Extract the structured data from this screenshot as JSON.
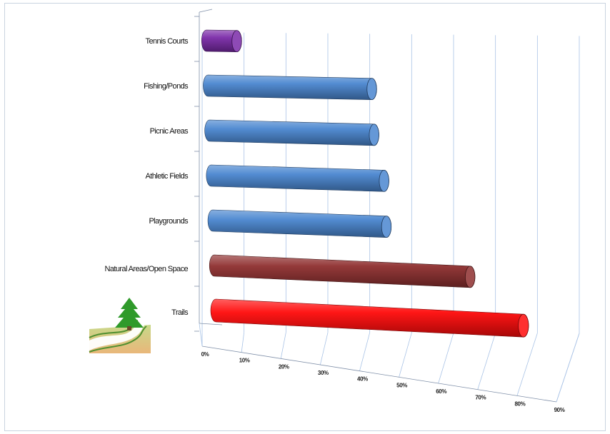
{
  "chart_data": {
    "type": "bar",
    "orientation": "horizontal",
    "style": "3d-cylinder",
    "categories": [
      "Tennis Courts",
      "Fishing/Ponds",
      "Picnic Areas",
      "Athletic Fields",
      "Playgrounds",
      "Natural Areas/Open Space",
      "Trails"
    ],
    "values": [
      8,
      43,
      43,
      45,
      45,
      66,
      79
    ],
    "colors": [
      "#7a2aa8",
      "#4a86d0",
      "#4a86d0",
      "#4a86d0",
      "#4a86d0",
      "#8e2f2f",
      "#ff0a0a"
    ],
    "xlim": [
      0,
      90
    ],
    "xticks": [
      "0%",
      "10%",
      "20%",
      "30%",
      "40%",
      "50%",
      "60%",
      "70%",
      "80%",
      "90%"
    ],
    "grid": true,
    "legend": "none",
    "icon": "tree-trail-icon"
  }
}
